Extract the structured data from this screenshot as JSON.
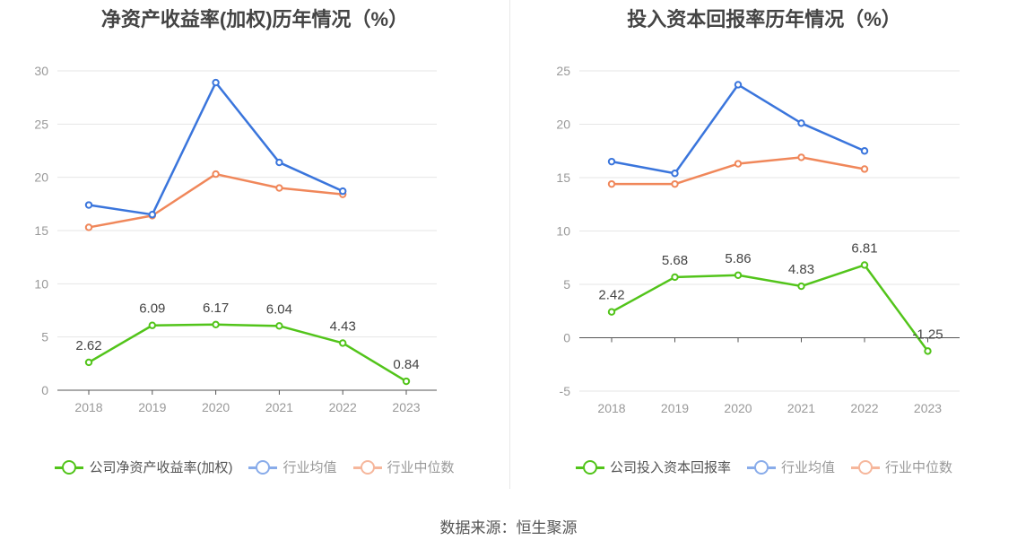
{
  "source": "数据来源：恒生聚源",
  "chart_data": [
    {
      "type": "line",
      "title": "净资产收益率(加权)历年情况（%）",
      "categories": [
        "2018",
        "2019",
        "2020",
        "2021",
        "2022",
        "2023"
      ],
      "ylim": [
        0,
        30
      ],
      "yticks": [
        0,
        5,
        10,
        15,
        20,
        25,
        30
      ],
      "grid": true,
      "legend_position": "bottom",
      "series": [
        {
          "name": "公司净资产收益率(加权)",
          "color": "#52c41a",
          "labeled": true,
          "values": [
            2.62,
            6.09,
            6.17,
            6.04,
            4.43,
            0.84
          ],
          "labels": [
            "2.62",
            "6.09",
            "6.17",
            "6.04",
            "4.43",
            "0.84"
          ]
        },
        {
          "name": "行业均值",
          "color": "#3a75dc",
          "labeled": false,
          "values": [
            17.4,
            16.5,
            28.9,
            21.4,
            18.7,
            null
          ]
        },
        {
          "name": "行业中位数",
          "color": "#f0875a",
          "labeled": false,
          "values": [
            15.3,
            16.4,
            20.3,
            19.0,
            18.4,
            null
          ]
        }
      ]
    },
    {
      "type": "line",
      "title": "投入资本回报率历年情况（%）",
      "categories": [
        "2018",
        "2019",
        "2020",
        "2021",
        "2022",
        "2023"
      ],
      "ylim": [
        -5,
        25
      ],
      "yticks": [
        -5,
        0,
        5,
        10,
        15,
        20,
        25
      ],
      "grid": true,
      "legend_position": "bottom",
      "series": [
        {
          "name": "公司投入资本回报率",
          "color": "#52c41a",
          "labeled": true,
          "values": [
            2.42,
            5.68,
            5.86,
            4.83,
            6.81,
            -1.25
          ],
          "labels": [
            "2.42",
            "5.68",
            "5.86",
            "4.83",
            "6.81",
            "-1.25"
          ]
        },
        {
          "name": "行业均值",
          "color": "#3a75dc",
          "labeled": false,
          "values": [
            16.5,
            15.4,
            23.7,
            20.1,
            17.5,
            null
          ]
        },
        {
          "name": "行业中位数",
          "color": "#f0875a",
          "labeled": false,
          "values": [
            14.4,
            14.4,
            16.3,
            16.9,
            15.8,
            null
          ]
        }
      ]
    }
  ]
}
